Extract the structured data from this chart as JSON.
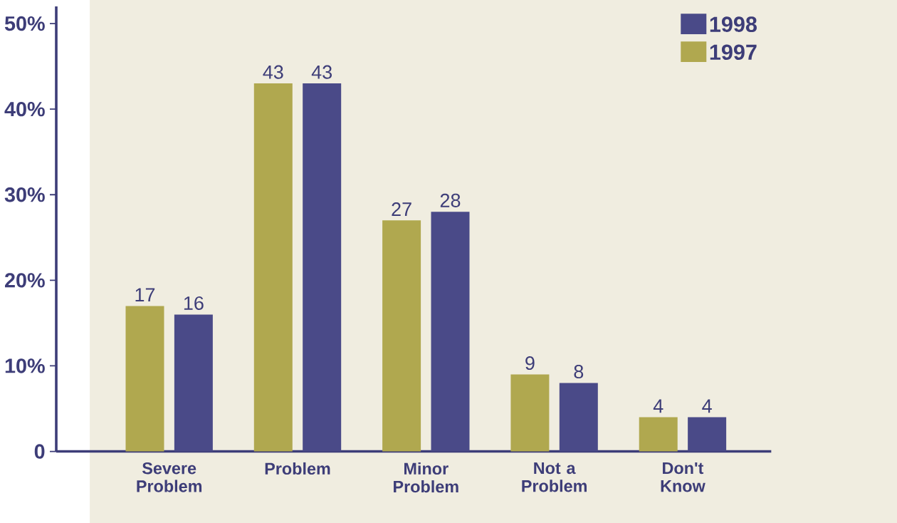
{
  "chart_data": {
    "type": "bar",
    "categories": [
      "Severe Problem",
      "Problem",
      "Minor Problem",
      "Not a Problem",
      "Don't Know"
    ],
    "series": [
      {
        "name": "1997",
        "color": "#b0a84f",
        "values": [
          17,
          43,
          27,
          9,
          4
        ]
      },
      {
        "name": "1998",
        "color": "#4a4a88",
        "values": [
          16,
          43,
          28,
          8,
          4
        ]
      }
    ],
    "ylim": [
      0,
      52
    ],
    "yticks": [
      0,
      {
        "value": 10,
        "label": "10%"
      },
      {
        "value": 20,
        "label": "20%"
      },
      {
        "value": 30,
        "label": "30%"
      },
      {
        "value": 40,
        "label": "40%"
      },
      {
        "value": 50,
        "label": "50%"
      }
    ],
    "data_labels": true,
    "legend": "top right",
    "grid": false
  }
}
